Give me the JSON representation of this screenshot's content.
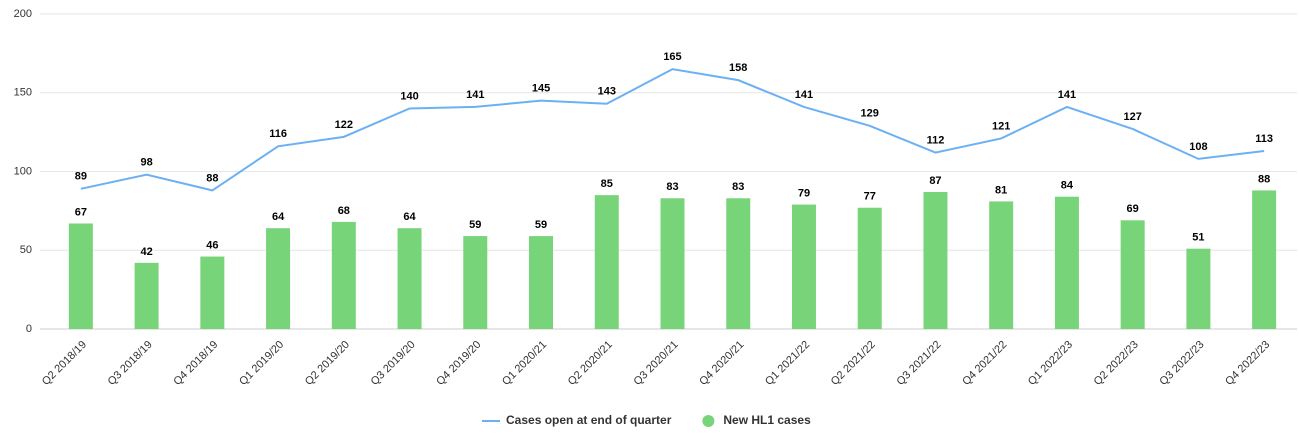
{
  "chart_data": {
    "type": "bar",
    "categories": [
      "Q2 2018/19",
      "Q3 2018/19",
      "Q4 2018/19",
      "Q1 2019/20",
      "Q2 2019/20",
      "Q3 2019/20",
      "Q4 2019/20",
      "Q1 2020/21",
      "Q2 2020/21",
      "Q3 2020/21",
      "Q4 2020/21",
      "Q1 2021/22",
      "Q2 2021/22",
      "Q3 2021/22",
      "Q4 2021/22",
      "Q1 2022/23",
      "Q2 2022/23",
      "Q3 2022/23",
      "Q4 2022/23"
    ],
    "series": [
      {
        "name": "Cases open at end of quarter",
        "type": "line",
        "color": "#6cb0f4",
        "values": [
          89,
          98,
          88,
          116,
          122,
          140,
          141,
          145,
          143,
          165,
          158,
          141,
          129,
          112,
          121,
          141,
          127,
          108,
          113
        ]
      },
      {
        "name": "New HL1 cases",
        "type": "bar",
        "color": "#78d478",
        "values": [
          67,
          42,
          46,
          64,
          68,
          64,
          59,
          59,
          85,
          83,
          83,
          79,
          77,
          87,
          81,
          84,
          69,
          51,
          88
        ]
      }
    ],
    "ylim": [
      0,
      200
    ],
    "yticks": [
      0,
      50,
      100,
      150,
      200
    ],
    "grid": true,
    "legend": "bottom"
  }
}
